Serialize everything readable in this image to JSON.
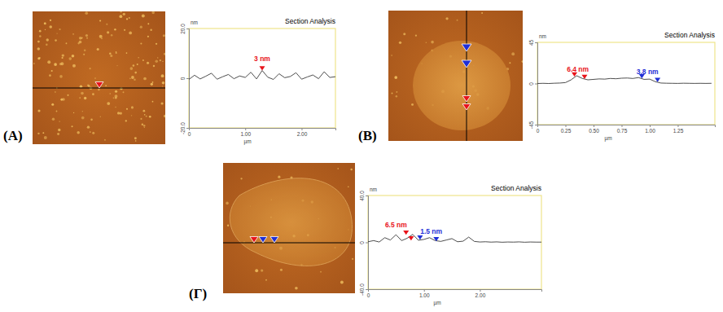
{
  "chart_data": [
    {
      "type": "line",
      "panel_label": "(A)",
      "title": "Section Analysis",
      "y_label": "nm",
      "x_label": "µm",
      "color": "#3a3a3a",
      "x": [
        0,
        0.1,
        0.2,
        0.3,
        0.4,
        0.5,
        0.6,
        0.7,
        0.8,
        0.9,
        1.0,
        1.1,
        1.2,
        1.3,
        1.4,
        1.5,
        1.6,
        1.7,
        1.8,
        1.9,
        2.0,
        2.1,
        2.2,
        2.3,
        2.4,
        2.5,
        2.6
      ],
      "values": [
        -0.5,
        1.2,
        -0.3,
        0.8,
        2.0,
        -0.4,
        0.6,
        1.5,
        -0.2,
        0.9,
        0.3,
        2.4,
        -0.3,
        3.1,
        0.4,
        -0.5,
        1.8,
        0.2,
        0.7,
        2.2,
        -0.4,
        0.5,
        1.3,
        -0.2,
        2.6,
        0.3,
        0.6
      ],
      "xlim": [
        0,
        2.6
      ],
      "ylim": [
        -20,
        20
      ],
      "xticks": [
        0,
        {
          "value": 1,
          "label": "1.00"
        },
        {
          "value": 2,
          "label": "2.00"
        }
      ],
      "yticks": [
        {
          "value": -20,
          "label": "-20.0"
        },
        0,
        {
          "value": 20,
          "label": "20.0"
        }
      ],
      "cursors": [
        {
          "x": 1.3,
          "y": 3.1,
          "color": "#e8141b"
        }
      ],
      "annotations": [
        {
          "text": "3 nm",
          "x": 1.3,
          "y": 7,
          "color": "#e8141b"
        }
      ]
    },
    {
      "type": "line",
      "panel_label": "(B)",
      "title": "Section Analysis",
      "y_label": "nm",
      "x_label": "µm",
      "color": "#3a3a3a",
      "x": [
        0,
        0.05,
        0.1,
        0.15,
        0.2,
        0.25,
        0.3,
        0.35,
        0.4,
        0.45,
        0.5,
        0.55,
        0.6,
        0.65,
        0.7,
        0.75,
        0.8,
        0.85,
        0.9,
        0.95,
        1.0,
        1.05,
        1.1,
        1.15,
        1.2,
        1.25,
        1.3,
        1.35,
        1.4,
        1.45,
        1.5,
        1.55
      ],
      "values": [
        0,
        0.2,
        0,
        0.3,
        0.5,
        1.0,
        4.0,
        8.5,
        5.5,
        4.0,
        4.5,
        5.0,
        4.8,
        5.5,
        5.2,
        5.8,
        6.0,
        5.5,
        6.5,
        4.5,
        4.8,
        2.0,
        0.5,
        0.3,
        0.2,
        0.1,
        0.3,
        0.2,
        0.1,
        0.2,
        0.1,
        0.2
      ],
      "xlim": [
        0,
        1.58
      ],
      "ylim": [
        -45,
        45
      ],
      "xticks": [
        0,
        0.25,
        {
          "value": 0.5,
          "label": "0.50"
        },
        0.75,
        {
          "value": 1,
          "label": "1.00"
        },
        1.25
      ],
      "yticks": [
        -45,
        0,
        45
      ],
      "cursors": [
        {
          "x": 0.33,
          "y": 7.5,
          "color": "#e8141b"
        },
        {
          "x": 0.42,
          "y": 4.8,
          "color": "#e8141b"
        },
        {
          "x": 0.93,
          "y": 5.5,
          "color": "#1f2fd6"
        },
        {
          "x": 1.07,
          "y": 1.5,
          "color": "#1f2fd6"
        }
      ],
      "annotations": [
        {
          "text": "6.4 nm",
          "x": 0.36,
          "y": 13,
          "color": "#e8141b"
        },
        {
          "text": "3.8 nm",
          "x": 0.98,
          "y": 10,
          "color": "#1f2fd6"
        }
      ]
    },
    {
      "type": "line",
      "panel_label": "(Γ)",
      "title": "Section Analysis",
      "y_label": "nm",
      "x_label": "µm",
      "color": "#3a3a3a",
      "x": [
        0,
        0.1,
        0.2,
        0.3,
        0.4,
        0.5,
        0.6,
        0.7,
        0.8,
        0.9,
        1.0,
        1.1,
        1.2,
        1.3,
        1.4,
        1.5,
        1.6,
        1.7,
        1.8,
        1.9,
        2.0,
        2.1,
        2.2,
        2.3,
        2.4,
        2.5,
        2.6,
        2.7,
        2.8,
        2.9,
        3.0,
        3.1
      ],
      "values": [
        0.5,
        1.5,
        0.3,
        4.0,
        2.0,
        6.5,
        1.5,
        3.5,
        6.8,
        1.8,
        2.5,
        4.0,
        1.5,
        0.8,
        2.0,
        3.2,
        0.5,
        1.0,
        4.5,
        0.8,
        0.3,
        0.5,
        0.2,
        0.4,
        0.1,
        0.3,
        0.2,
        0.4,
        0.1,
        0.3,
        0.2,
        0.2
      ],
      "xlim": [
        0,
        3.1
      ],
      "ylim": [
        -40,
        40
      ],
      "xticks": [
        0,
        {
          "value": 1,
          "label": "1.00"
        },
        {
          "value": 2,
          "label": "2.00"
        }
      ],
      "yticks": [
        {
          "value": -40,
          "label": "-40.0"
        },
        0,
        {
          "value": 40,
          "label": "40.0"
        }
      ],
      "cursors": [
        {
          "x": 0.68,
          "y": 6.5,
          "color": "#e8141b"
        },
        {
          "x": 0.77,
          "y": 1.5,
          "color": "#e8141b"
        },
        {
          "x": 0.93,
          "y": 2.2,
          "color": "#1f2fd6"
        },
        {
          "x": 1.22,
          "y": 0.8,
          "color": "#1f2fd6"
        }
      ],
      "annotations": [
        {
          "text": "6.5 nm",
          "x": 0.5,
          "y": 13,
          "color": "#e8141b"
        },
        {
          "text": "1.5 nm",
          "x": 1.13,
          "y": 7,
          "color": "#1f2fd6"
        }
      ]
    }
  ]
}
